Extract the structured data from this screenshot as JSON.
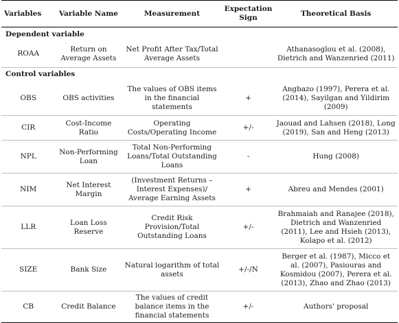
{
  "header": {
    "variables": "Variables",
    "variable_name": "Variable Name",
    "measurement": "Measurement",
    "expectation_sign": "Expectation Sign",
    "theoretical_basis": "Theoretical Basis"
  },
  "sections": {
    "dependent": "Dependent variable",
    "control": "Control variables"
  },
  "dependent_rows": [
    {
      "variable": "ROAA",
      "name": "Return on Average Assets",
      "measurement": "Net Profit After Tax/Total Average Assets",
      "sign": "",
      "basis": "Athanasoglou et al. (2008), Dietrich and Wanzenried (2011)"
    }
  ],
  "control_rows": [
    {
      "variable": "OBS",
      "name": "OBS activities",
      "measurement": "The values of OBS items in the financial statements",
      "sign": "+",
      "basis": "Angbazo (1997), Perera et al. (2014), Sayilgan and Yildirim (2009)"
    },
    {
      "variable": "CIR",
      "name": "Cost-Income Ratio",
      "measurement": "Operating Costs/Operating Income",
      "sign": "+/-",
      "basis": "Jaouad and Lahsen (2018), Long (2019), San and Heng (2013)"
    },
    {
      "variable": "NPL",
      "name": "Non-Performing Loan",
      "measurement": "Total Non-Performing Loans/Total Outstanding Loans",
      "sign": "-",
      "basis": "Hung (2008)"
    },
    {
      "variable": "NIM",
      "name": "Net Interest Margin",
      "measurement": "(Investment Returns – Interest Expenses)/ Average Earning Assets",
      "sign": "+",
      "basis": "Abreu and Mendes (2001)"
    },
    {
      "variable": "LLR",
      "name": "Loan Loss Reserve",
      "measurement": "Credit Risk Provision/Total Outstanding Loans",
      "sign": "+/-",
      "basis": "Brahmaiah and Ranajee (2018), Dietrich and Wanzenried (2011), Lee and Hsieh (2013), Kolapo et al. (2012)"
    },
    {
      "variable": "SIZE",
      "name": "Bank Size",
      "measurement": "Natural logarithm of total assets",
      "sign": "+/-/N",
      "basis": "Berger et al. (1987), Micco et al. (2007), Pasiouras and Kosmidou (2007), Perera et al. (2013), Zhao and Zhao (2013)"
    },
    {
      "variable": "CB",
      "name": "Credit Balance",
      "measurement": "The values of credit balance items in the financial statements",
      "sign": "+/-",
      "basis": "Authors' proposal"
    }
  ]
}
